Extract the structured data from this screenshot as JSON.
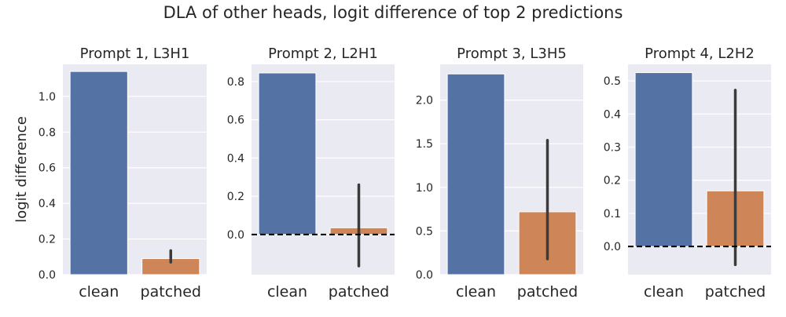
{
  "title": "DLA of other heads, logit difference of top 2 predictions",
  "chart_data": [
    {
      "type": "bar",
      "title": "Prompt 1, L3H1",
      "ylabel": "logit difference",
      "categories": [
        "clean",
        "patched"
      ],
      "values": [
        1.14,
        0.09
      ],
      "error_bars": [
        null,
        [
          0.07,
          0.135
        ]
      ],
      "colors": [
        "#5572a4",
        "#ce8658"
      ],
      "ylim": [
        0,
        1.18
      ],
      "yticks": [
        0.0,
        0.2,
        0.4,
        0.6,
        0.8,
        1.0
      ],
      "ytick_labels": [
        "0.0",
        "0.2",
        "0.4",
        "0.6",
        "0.8",
        "1.0"
      ],
      "zero_line": false,
      "grid": true
    },
    {
      "type": "bar",
      "title": "Prompt 2, L2H1",
      "ylabel": "",
      "categories": [
        "clean",
        "patched"
      ],
      "values": [
        0.845,
        0.035
      ],
      "error_bars": [
        null,
        [
          -0.165,
          0.26
        ]
      ],
      "colors": [
        "#5572a4",
        "#ce8658"
      ],
      "ylim": [
        -0.21,
        0.89
      ],
      "yticks": [
        0.0,
        0.2,
        0.4,
        0.6,
        0.8
      ],
      "ytick_labels": [
        "0.0",
        "0.2",
        "0.4",
        "0.6",
        "0.8"
      ],
      "zero_line": true,
      "grid": true
    },
    {
      "type": "bar",
      "title": "Prompt 3, L3H5",
      "ylabel": "",
      "categories": [
        "clean",
        "patched"
      ],
      "values": [
        2.3,
        0.72
      ],
      "error_bars": [
        null,
        [
          0.18,
          1.54
        ]
      ],
      "colors": [
        "#5572a4",
        "#ce8658"
      ],
      "ylim": [
        0,
        2.41
      ],
      "yticks": [
        0.0,
        0.5,
        1.0,
        1.5,
        2.0
      ],
      "ytick_labels": [
        "0.0",
        "0.5",
        "1.0",
        "1.5",
        "2.0"
      ],
      "zero_line": false,
      "grid": true
    },
    {
      "type": "bar",
      "title": "Prompt 4, L2H2",
      "ylabel": "",
      "categories": [
        "clean",
        "patched"
      ],
      "values": [
        0.525,
        0.168
      ],
      "error_bars": [
        null,
        [
          -0.055,
          0.472
        ]
      ],
      "colors": [
        "#5572a4",
        "#ce8658"
      ],
      "ylim": [
        -0.085,
        0.55
      ],
      "yticks": [
        0.0,
        0.1,
        0.2,
        0.3,
        0.4,
        0.5
      ],
      "ytick_labels": [
        "0.0",
        "0.1",
        "0.2",
        "0.3",
        "0.4",
        "0.5"
      ],
      "zero_line": true,
      "grid": true
    }
  ]
}
